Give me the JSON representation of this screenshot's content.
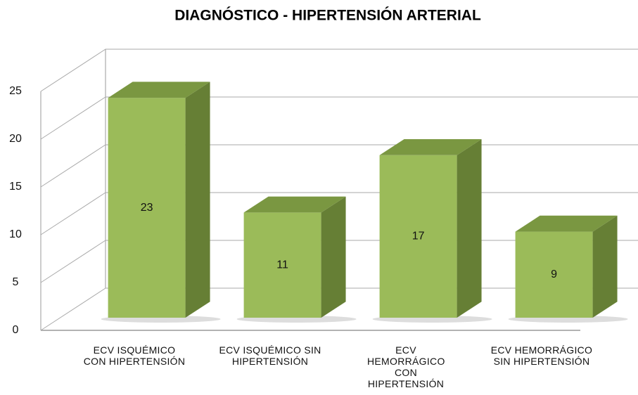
{
  "chart_data": {
    "type": "bar3d",
    "title": "DIAGNÓSTICO - HIPERTENSIÓN ARTERIAL",
    "categories": [
      "ECV ISQUÉMICO CON HIPERTENSIÓN",
      "ECV ISQUÉMICO SIN HIPERTENSIÓN",
      "ECV HEMORRÁGICO CON HIPERTENSIÓN",
      "ECV HEMORRÁGICO SIN HIPERTENSIÓN"
    ],
    "values": [
      23,
      11,
      17,
      9
    ],
    "color": "#9bbb59",
    "ylim": [
      0,
      25
    ],
    "yticks": [
      0,
      5,
      10,
      15,
      20,
      25
    ],
    "grid": true
  }
}
